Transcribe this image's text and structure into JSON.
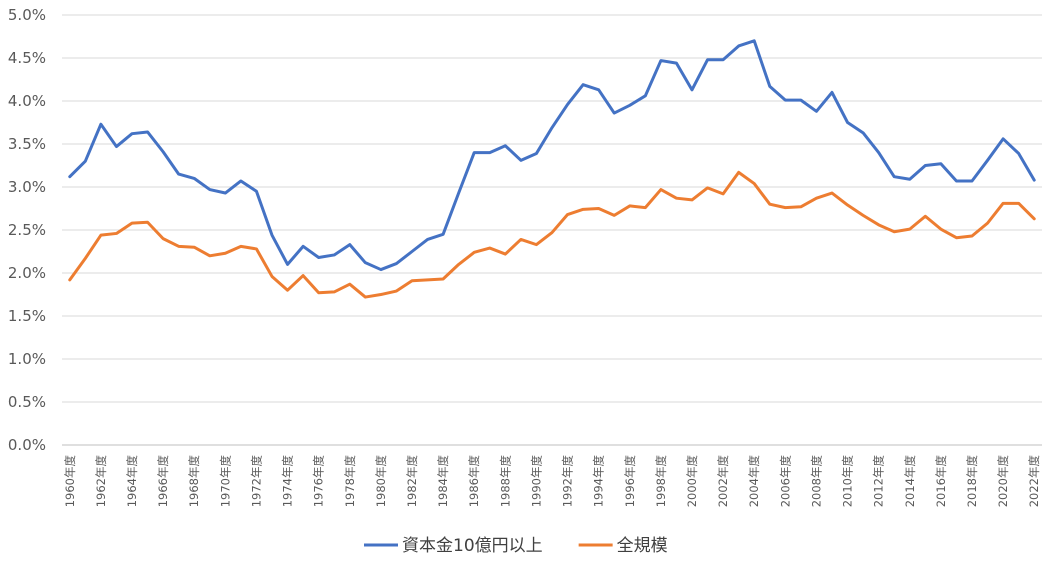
{
  "chart_data": {
    "type": "line",
    "title": "",
    "xlabel": "",
    "ylabel": "",
    "ylim": [
      0,
      5.0
    ],
    "y_ticks": [
      "0.0%",
      "0.5%",
      "1.0%",
      "1.5%",
      "2.0%",
      "2.5%",
      "3.0%",
      "3.5%",
      "4.0%",
      "4.5%",
      "5.0%"
    ],
    "grid": "horizontal",
    "legend_position": "bottom",
    "categories": [
      "1960年度",
      "1961年度",
      "1962年度",
      "1963年度",
      "1964年度",
      "1965年度",
      "1966年度",
      "1967年度",
      "1968年度",
      "1969年度",
      "1970年度",
      "1971年度",
      "1972年度",
      "1973年度",
      "1974年度",
      "1975年度",
      "1976年度",
      "1977年度",
      "1978年度",
      "1979年度",
      "1980年度",
      "1981年度",
      "1982年度",
      "1983年度",
      "1984年度",
      "1985年度",
      "1986年度",
      "1987年度",
      "1988年度",
      "1989年度",
      "1990年度",
      "1991年度",
      "1992年度",
      "1993年度",
      "1994年度",
      "1995年度",
      "1996年度",
      "1997年度",
      "1998年度",
      "1999年度",
      "2000年度",
      "2001年度",
      "2002年度",
      "2003年度",
      "2004年度",
      "2005年度",
      "2006年度",
      "2007年度",
      "2008年度",
      "2009年度",
      "2010年度",
      "2011年度",
      "2012年度",
      "2013年度",
      "2014年度",
      "2015年度",
      "2016年度",
      "2017年度",
      "2018年度",
      "2019年度",
      "2020年度",
      "2021年度",
      "2022年度"
    ],
    "tick_labels": [
      "1960年度",
      "1962年度",
      "1964年度",
      "1966年度",
      "1968年度",
      "1970年度",
      "1972年度",
      "1974年度",
      "1976年度",
      "1978年度",
      "1980年度",
      "1982年度",
      "1984年度",
      "1986年度",
      "1988年度",
      "1990年度",
      "1992年度",
      "1994年度",
      "1996年度",
      "1998年度",
      "2000年度",
      "2002年度",
      "2004年度",
      "2006年度",
      "2008年度",
      "2010年度",
      "2012年度",
      "2014年度",
      "2016年度",
      "2018年度",
      "2020年度",
      "2022年度"
    ],
    "series": [
      {
        "name": "資本金10億円以上",
        "color": "#4472C4",
        "values": [
          3.12,
          3.3,
          3.73,
          3.47,
          3.62,
          3.64,
          3.41,
          3.15,
          3.1,
          2.97,
          2.93,
          3.07,
          2.95,
          2.44,
          2.1,
          2.31,
          2.18,
          2.21,
          2.33,
          2.12,
          2.04,
          2.11,
          2.25,
          2.39,
          2.45,
          2.93,
          3.4,
          3.4,
          3.48,
          3.31,
          3.39,
          3.69,
          3.96,
          4.19,
          4.13,
          3.86,
          3.95,
          4.06,
          4.47,
          4.44,
          4.13,
          4.48,
          4.48,
          4.64,
          4.7,
          4.17,
          4.01,
          4.01,
          3.88,
          4.1,
          3.75,
          3.63,
          3.4,
          3.12,
          3.09,
          3.25,
          3.27,
          3.07,
          3.07,
          3.31,
          3.56,
          3.39,
          3.08
        ]
      },
      {
        "name": "全規模",
        "color": "#ED7D31",
        "values": [
          1.92,
          2.17,
          2.44,
          2.46,
          2.58,
          2.59,
          2.4,
          2.31,
          2.3,
          2.2,
          2.23,
          2.31,
          2.28,
          1.96,
          1.8,
          1.97,
          1.77,
          1.78,
          1.87,
          1.72,
          1.75,
          1.79,
          1.91,
          1.92,
          1.93,
          2.1,
          2.24,
          2.29,
          2.22,
          2.39,
          2.33,
          2.47,
          2.68,
          2.74,
          2.75,
          2.67,
          2.78,
          2.76,
          2.97,
          2.87,
          2.85,
          2.99,
          2.92,
          3.17,
          3.04,
          2.8,
          2.76,
          2.77,
          2.87,
          2.93,
          2.79,
          2.67,
          2.56,
          2.48,
          2.51,
          2.66,
          2.51,
          2.41,
          2.43,
          2.58,
          2.81,
          2.81,
          2.63
        ]
      }
    ]
  }
}
